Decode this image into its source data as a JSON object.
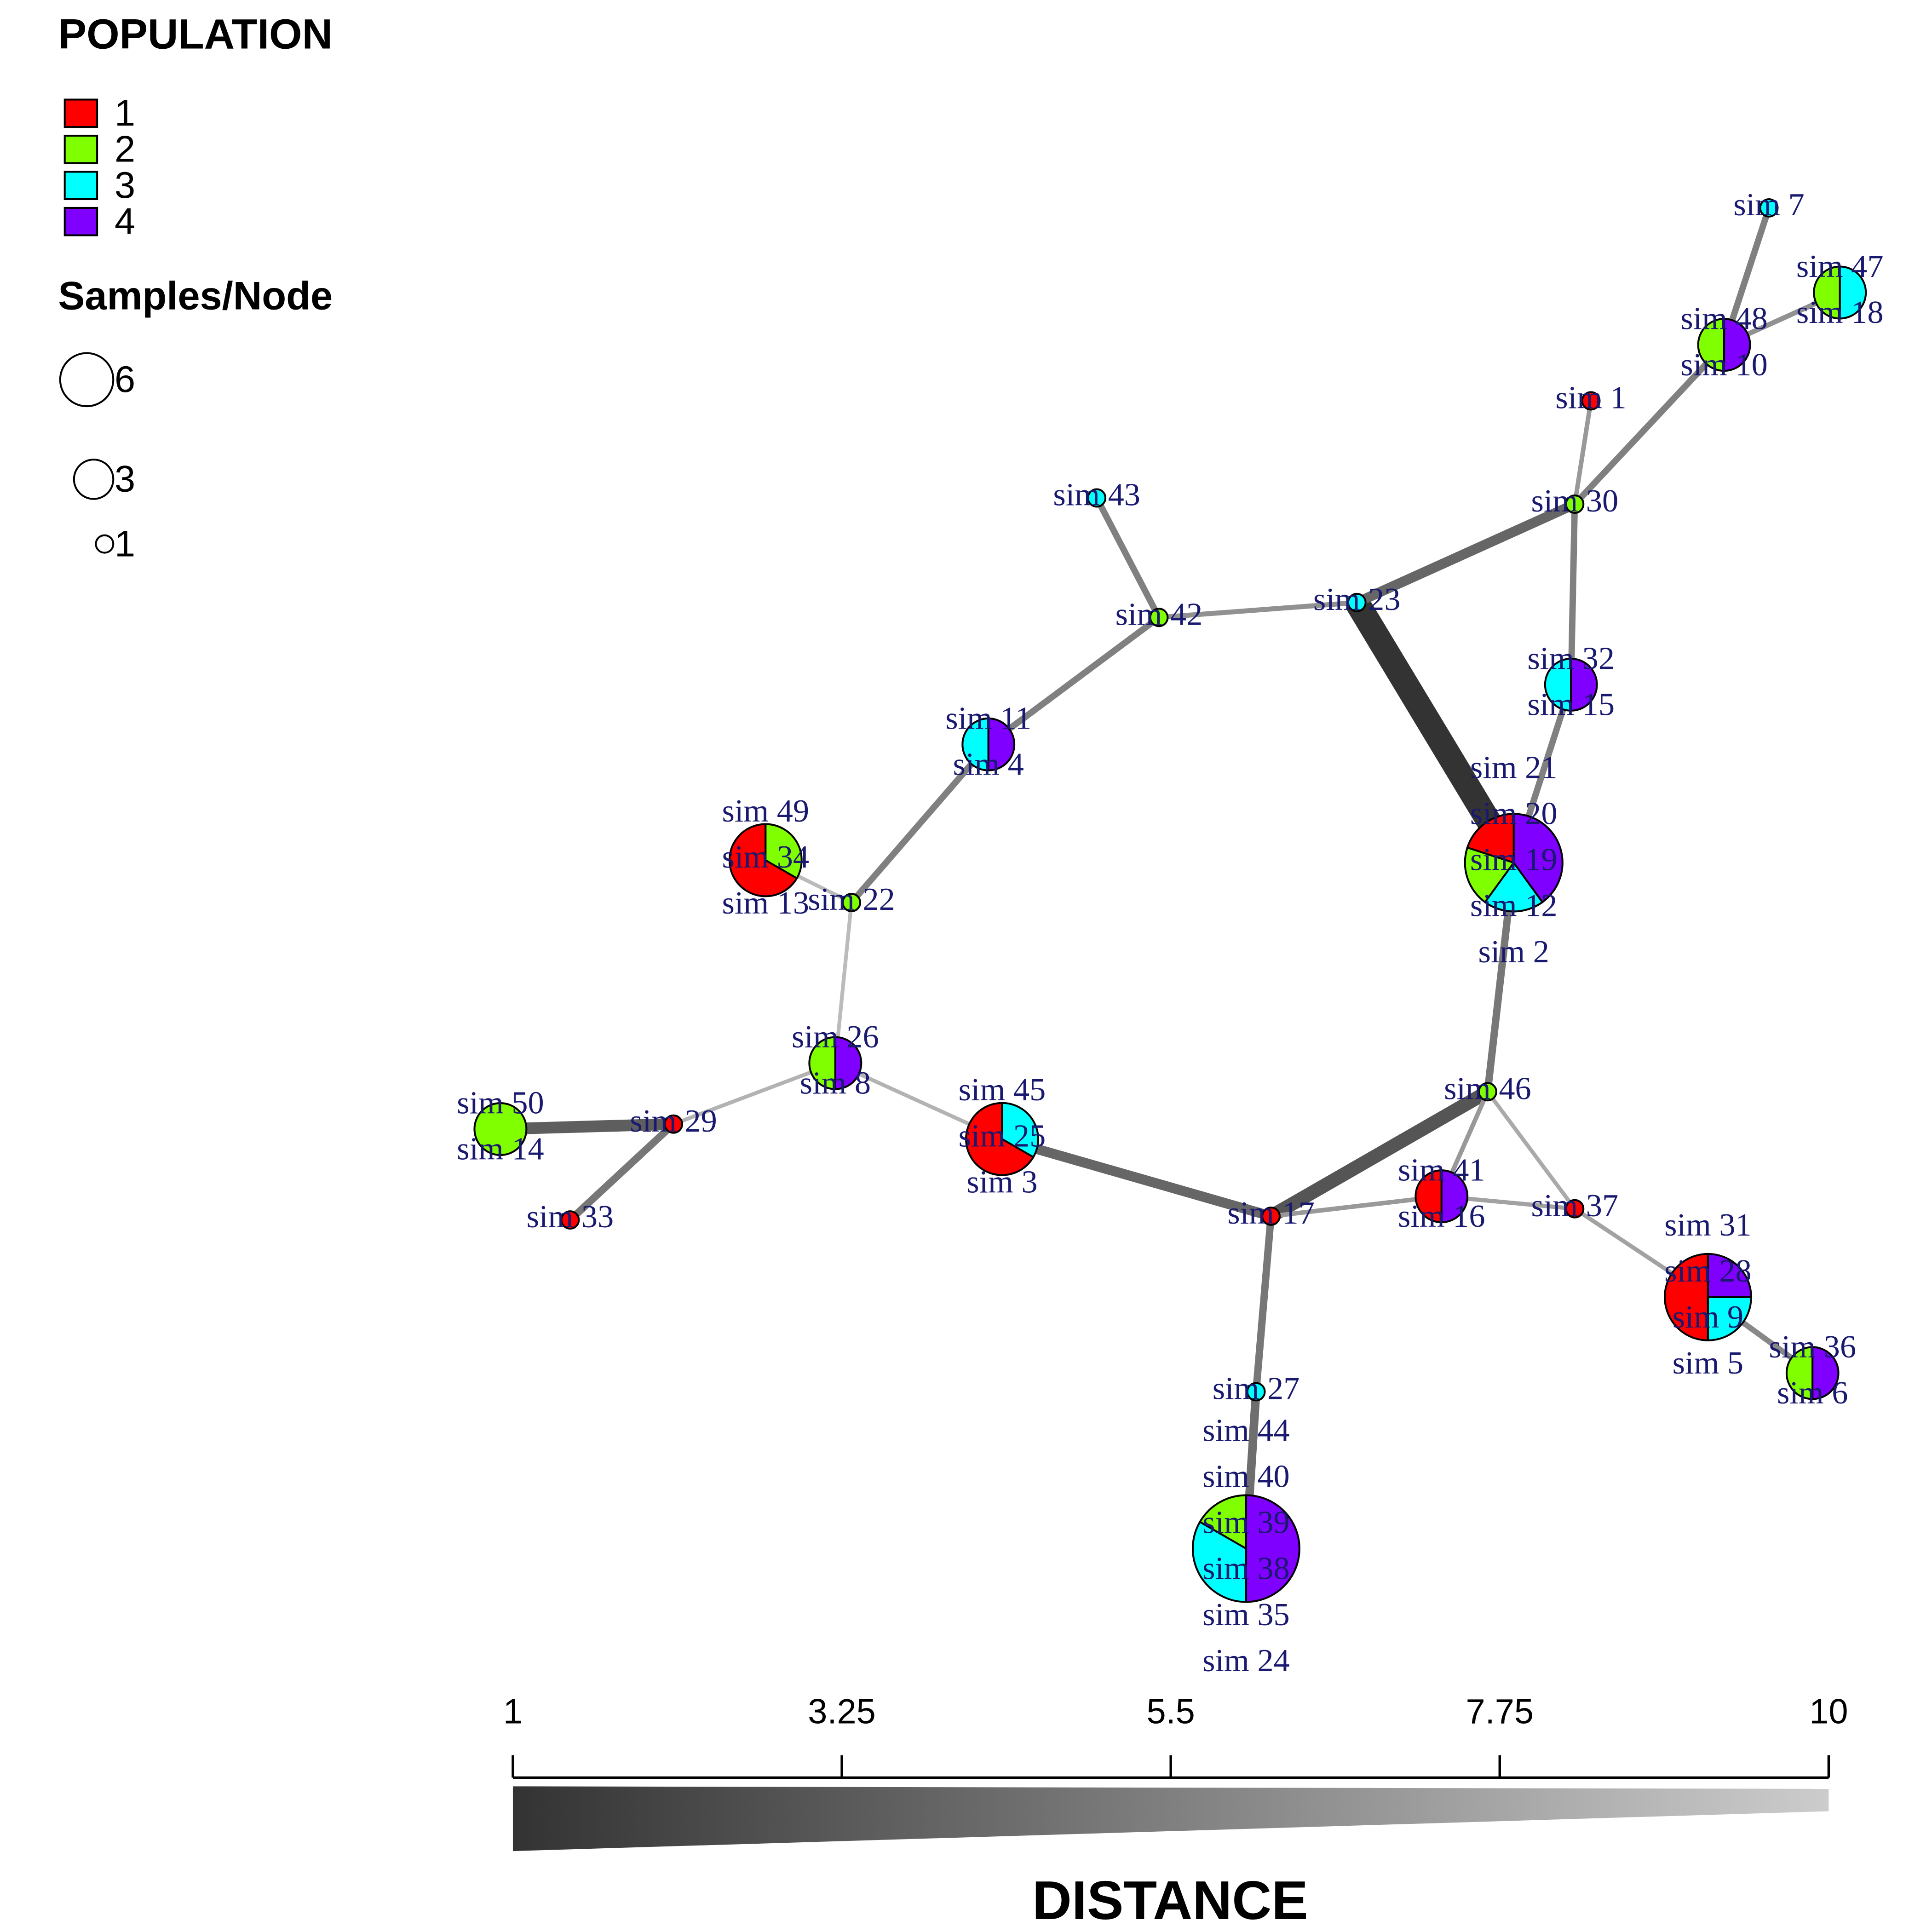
{
  "legend": {
    "title": "POPULATION",
    "populations": [
      {
        "name": "1",
        "color": "#ff0000"
      },
      {
        "name": "2",
        "color": "#80ff00"
      },
      {
        "name": "3",
        "color": "#00ffff"
      },
      {
        "name": "4",
        "color": "#8000ff"
      }
    ],
    "size_title": "Samples/Node",
    "sizes": [
      6,
      3,
      1
    ]
  },
  "nodes": [
    {
      "samples": [
        "sim 7"
      ],
      "counts": [
        0,
        0,
        1,
        0
      ]
    },
    {
      "samples": [
        "sim 47",
        "sim 18"
      ],
      "counts": [
        0,
        1,
        1,
        0
      ]
    },
    {
      "samples": [
        "sim 48",
        "sim 10"
      ],
      "counts": [
        0,
        1,
        0,
        1
      ]
    },
    {
      "samples": [
        "sim 1"
      ],
      "counts": [
        1,
        0,
        0,
        0
      ]
    },
    {
      "samples": [
        "sim 30"
      ],
      "counts": [
        0,
        1,
        0,
        0
      ]
    },
    {
      "samples": [
        "sim 43"
      ],
      "counts": [
        0,
        0,
        1,
        0
      ]
    },
    {
      "samples": [
        "sim 42"
      ],
      "counts": [
        0,
        1,
        0,
        0
      ]
    },
    {
      "samples": [
        "sim 23"
      ],
      "counts": [
        0,
        0,
        1,
        0
      ]
    },
    {
      "samples": [
        "sim 32",
        "sim 15"
      ],
      "counts": [
        0,
        0,
        1,
        1
      ]
    },
    {
      "samples": [
        "sim 11",
        "sim 4"
      ],
      "counts": [
        0,
        0,
        1,
        1
      ]
    },
    {
      "samples": [
        "sim 49",
        "sim 34",
        "sim 13"
      ],
      "counts": [
        2,
        1,
        0,
        0
      ]
    },
    {
      "samples": [
        "sim 22"
      ],
      "counts": [
        0,
        1,
        0,
        0
      ]
    },
    {
      "samples": [
        "sim 21",
        "sim 20",
        "sim 19",
        "sim 12",
        "sim 2"
      ],
      "counts": [
        1,
        1,
        1,
        2
      ]
    },
    {
      "samples": [
        "sim 26",
        "sim 8"
      ],
      "counts": [
        0,
        1,
        0,
        1
      ]
    },
    {
      "samples": [
        "sim 50",
        "sim 14"
      ],
      "counts": [
        0,
        2,
        0,
        0
      ]
    },
    {
      "samples": [
        "sim 29"
      ],
      "counts": [
        1,
        0,
        0,
        0
      ]
    },
    {
      "samples": [
        "sim 33"
      ],
      "counts": [
        1,
        0,
        0,
        0
      ]
    },
    {
      "samples": [
        "sim 45",
        "sim 25",
        "sim 3"
      ],
      "counts": [
        2,
        0,
        1,
        0
      ]
    },
    {
      "samples": [
        "sim 46"
      ],
      "counts": [
        0,
        1,
        0,
        0
      ]
    },
    {
      "samples": [
        "sim 17"
      ],
      "counts": [
        1,
        0,
        0,
        0
      ]
    },
    {
      "samples": [
        "sim 41",
        "sim 16"
      ],
      "counts": [
        1,
        0,
        0,
        1
      ]
    },
    {
      "samples": [
        "sim 37"
      ],
      "counts": [
        1,
        0,
        0,
        0
      ]
    },
    {
      "samples": [
        "sim 31",
        "sim 28",
        "sim 9",
        "sim 5"
      ],
      "counts": [
        2,
        0,
        1,
        1
      ]
    },
    {
      "samples": [
        "sim 36",
        "sim 6"
      ],
      "counts": [
        0,
        1,
        0,
        1
      ]
    },
    {
      "samples": [
        "sim 27"
      ],
      "counts": [
        0,
        0,
        1,
        0
      ]
    },
    {
      "samples": [
        "sim 44",
        "sim 40",
        "sim 39",
        "sim 38",
        "sim 35",
        "sim 24"
      ],
      "counts": [
        0,
        1,
        2,
        3
      ]
    }
  ],
  "edges": [
    {
      "from": 7,
      "to": 12,
      "distance": 1
    },
    {
      "from": 18,
      "to": 19,
      "distance": 3
    },
    {
      "from": 7,
      "to": 4,
      "distance": 4
    },
    {
      "from": 14,
      "to": 15,
      "distance": 3.5
    },
    {
      "from": 17,
      "to": 19,
      "distance": 4
    },
    {
      "from": 0,
      "to": 2,
      "distance": 5.5
    },
    {
      "from": 2,
      "to": 1,
      "distance": 6.5
    },
    {
      "from": 2,
      "to": 4,
      "distance": 5.5
    },
    {
      "from": 4,
      "to": 3,
      "distance": 7
    },
    {
      "from": 4,
      "to": 8,
      "distance": 5.5
    },
    {
      "from": 8,
      "to": 12,
      "distance": 5.5
    },
    {
      "from": 12,
      "to": 18,
      "distance": 5
    },
    {
      "from": 5,
      "to": 6,
      "distance": 5.5
    },
    {
      "from": 6,
      "to": 7,
      "distance": 6.5
    },
    {
      "from": 6,
      "to": 9,
      "distance": 5.5
    },
    {
      "from": 9,
      "to": 11,
      "distance": 5.5
    },
    {
      "from": 11,
      "to": 10,
      "distance": 9
    },
    {
      "from": 11,
      "to": 13,
      "distance": 9
    },
    {
      "from": 13,
      "to": 15,
      "distance": 8.5
    },
    {
      "from": 15,
      "to": 16,
      "distance": 5
    },
    {
      "from": 13,
      "to": 17,
      "distance": 8.5
    },
    {
      "from": 19,
      "to": 20,
      "distance": 7
    },
    {
      "from": 20,
      "to": 21,
      "distance": 7.5
    },
    {
      "from": 18,
      "to": 20,
      "distance": 7
    },
    {
      "from": 18,
      "to": 21,
      "distance": 8
    },
    {
      "from": 21,
      "to": 22,
      "distance": 7.5
    },
    {
      "from": 22,
      "to": 23,
      "distance": 6
    },
    {
      "from": 19,
      "to": 24,
      "distance": 5
    },
    {
      "from": 24,
      "to": 25,
      "distance": 4.5
    }
  ],
  "scale": {
    "title": "DISTANCE",
    "range": [
      1,
      10
    ],
    "ticks": [
      1,
      3.25,
      5.5,
      7.75,
      10
    ]
  }
}
